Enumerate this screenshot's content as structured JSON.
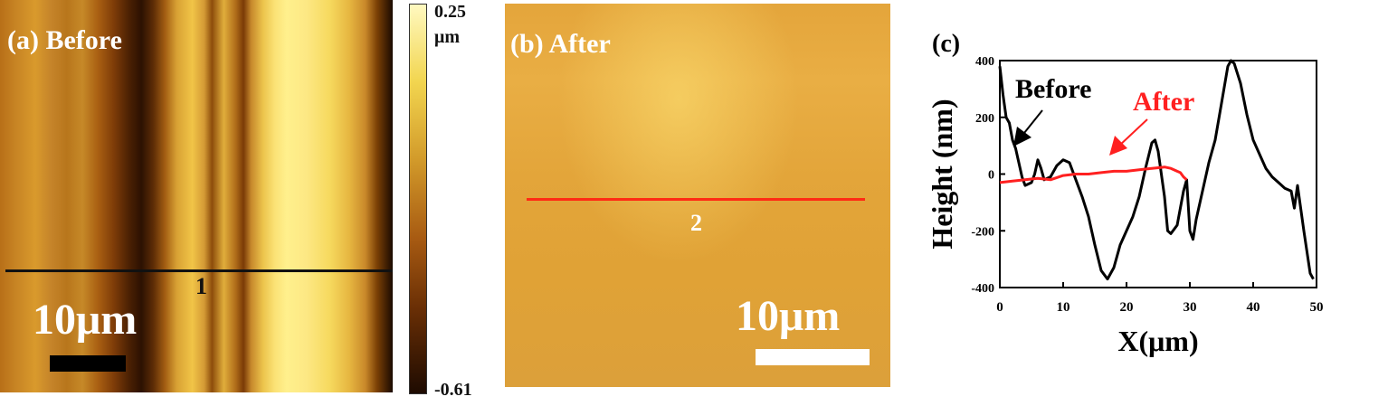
{
  "panel_a": {
    "label": "(a) Before",
    "scale_bar_text": "10μm",
    "line_label": "1",
    "colorbar": {
      "max_label": "0.25",
      "unit": "μm",
      "min_label": "-0.61"
    }
  },
  "panel_b": {
    "label": "(b) After",
    "scale_bar_text": "10μm",
    "line_label": "2"
  },
  "colors": {
    "before_line": "#000000",
    "after_line": "#ff2020",
    "profile_2": "#ff2a14"
  },
  "chart_data": {
    "type": "line",
    "panel_label": "(c)",
    "xlabel": "X(μm)",
    "ylabel": "Height (nm)",
    "xlim": [
      0,
      50
    ],
    "ylim": [
      -400,
      400
    ],
    "x_ticks": [
      0,
      10,
      20,
      30,
      40,
      50
    ],
    "y_ticks": [
      400,
      200,
      0,
      -200,
      -400
    ],
    "series": [
      {
        "name": "Before",
        "color": "#000000",
        "points": [
          [
            0,
            380
          ],
          [
            0.5,
            280
          ],
          [
            1,
            200
          ],
          [
            1.5,
            180
          ],
          [
            2,
            120
          ],
          [
            2.5,
            90
          ],
          [
            3,
            40
          ],
          [
            3.5,
            -10
          ],
          [
            4,
            -40
          ],
          [
            5,
            -30
          ],
          [
            5.5,
            0
          ],
          [
            6,
            50
          ],
          [
            6.5,
            20
          ],
          [
            7,
            -20
          ],
          [
            8,
            -10
          ],
          [
            9,
            30
          ],
          [
            10,
            50
          ],
          [
            11,
            40
          ],
          [
            12,
            -20
          ],
          [
            13,
            -80
          ],
          [
            14,
            -150
          ],
          [
            15,
            -250
          ],
          [
            16,
            -340
          ],
          [
            17,
            -370
          ],
          [
            18,
            -330
          ],
          [
            19,
            -250
          ],
          [
            20,
            -200
          ],
          [
            21,
            -150
          ],
          [
            22,
            -80
          ],
          [
            23,
            20
          ],
          [
            24,
            110
          ],
          [
            24.5,
            120
          ],
          [
            25,
            80
          ],
          [
            26,
            -80
          ],
          [
            26.5,
            -200
          ],
          [
            27,
            -210
          ],
          [
            28,
            -180
          ],
          [
            29,
            -60
          ],
          [
            29.5,
            -20
          ],
          [
            30,
            -200
          ],
          [
            30.5,
            -230
          ],
          [
            31,
            -160
          ],
          [
            32,
            -60
          ],
          [
            33,
            40
          ],
          [
            34,
            120
          ],
          [
            35,
            250
          ],
          [
            36,
            380
          ],
          [
            36.5,
            400
          ],
          [
            37,
            390
          ],
          [
            38,
            320
          ],
          [
            39,
            210
          ],
          [
            40,
            120
          ],
          [
            41,
            70
          ],
          [
            42,
            20
          ],
          [
            43,
            -10
          ],
          [
            44,
            -30
          ],
          [
            45,
            -50
          ],
          [
            46,
            -60
          ],
          [
            46.5,
            -120
          ],
          [
            47,
            -40
          ],
          [
            48,
            -200
          ],
          [
            49,
            -350
          ],
          [
            49.5,
            -370
          ]
        ]
      },
      {
        "name": "After",
        "color": "#ff2020",
        "points": [
          [
            0,
            -30
          ],
          [
            2,
            -25
          ],
          [
            4,
            -20
          ],
          [
            6,
            -15
          ],
          [
            8,
            -20
          ],
          [
            10,
            -5
          ],
          [
            12,
            0
          ],
          [
            14,
            0
          ],
          [
            16,
            5
          ],
          [
            18,
            10
          ],
          [
            20,
            10
          ],
          [
            22,
            15
          ],
          [
            24,
            20
          ],
          [
            26,
            25
          ],
          [
            27,
            20
          ],
          [
            28,
            10
          ],
          [
            28.5,
            5
          ],
          [
            29,
            -10
          ],
          [
            29.5,
            -20
          ]
        ]
      }
    ],
    "annotations": [
      {
        "text": "Before",
        "color": "#000000"
      },
      {
        "text": "After",
        "color": "#ff2020"
      }
    ]
  }
}
